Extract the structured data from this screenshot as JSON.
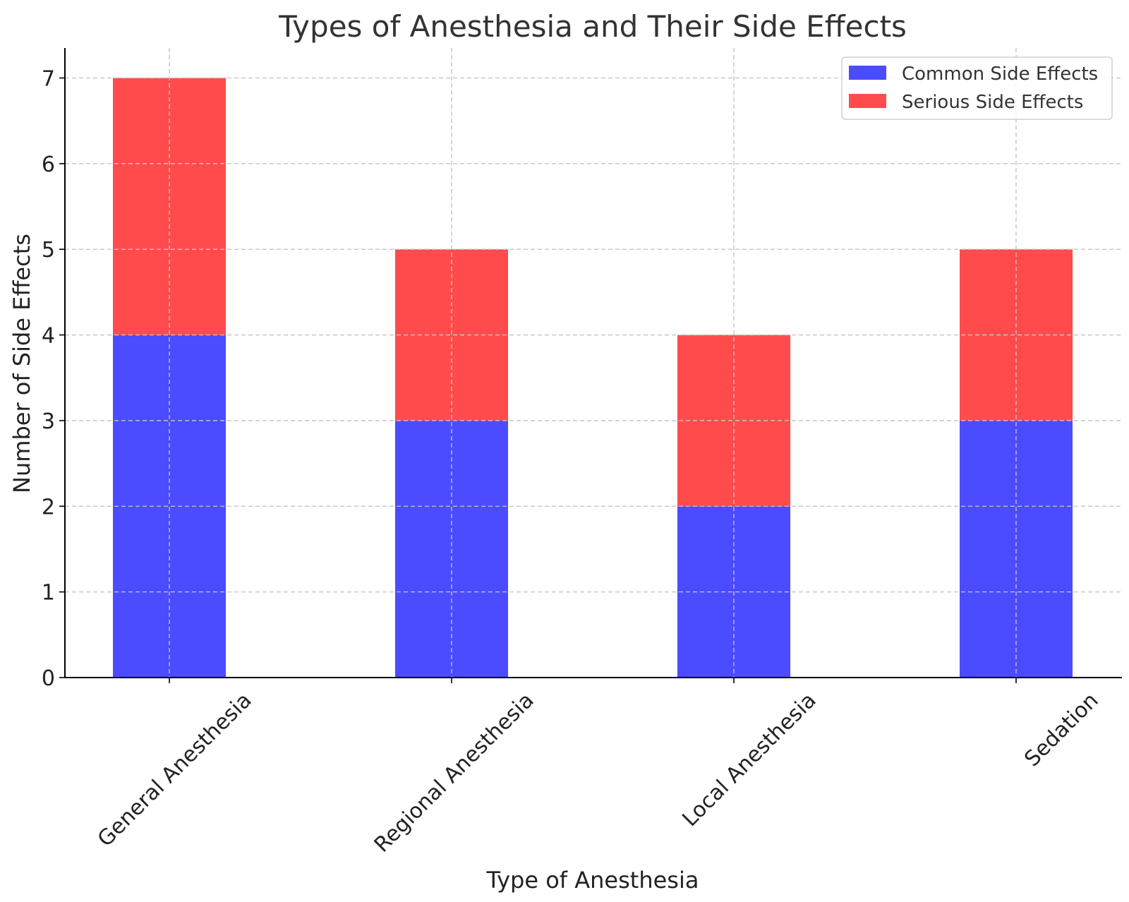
{
  "chart_data": {
    "type": "bar",
    "stacked": true,
    "title": "Types of Anesthesia and Their Side Effects",
    "xlabel": "Type of Anesthesia",
    "ylabel": "Number of Side Effects",
    "categories": [
      "General Anesthesia",
      "Regional Anesthesia",
      "Local Anesthesia",
      "Sedation"
    ],
    "series": [
      {
        "name": "Common Side Effects",
        "values": [
          4,
          3,
          2,
          3
        ],
        "color": "#4b4bff"
      },
      {
        "name": "Serious Side Effects",
        "values": [
          3,
          2,
          2,
          2
        ],
        "color": "#ff4b4b"
      }
    ],
    "ylim": [
      0,
      7.35
    ],
    "yticks": [
      0,
      1,
      2,
      3,
      4,
      5,
      6,
      7
    ],
    "grid": true,
    "legend": "top-right"
  }
}
